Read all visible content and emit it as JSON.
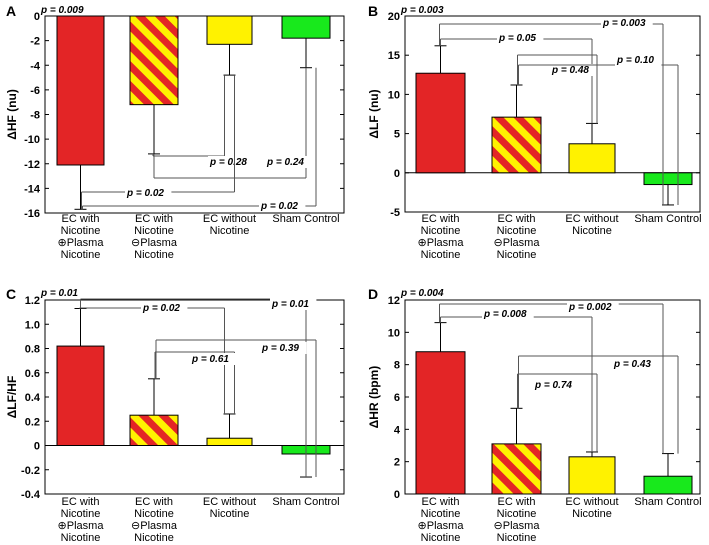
{
  "chart_data": [
    {
      "type": "bar",
      "panel": "A",
      "title": "",
      "ylabel": "ΔHF (nu)",
      "xlabel": "",
      "ylim": [
        -16,
        0
      ],
      "yticks": [
        0,
        -2,
        -4,
        -6,
        -8,
        -10,
        -12,
        -14,
        -16
      ],
      "categories": [
        "EC with Nicotine ⊕Plasma Nicotine",
        "EC with Nicotine ⊖Plasma Nicotine",
        "EC without Nicotine",
        "Sham Control"
      ],
      "category_lines": [
        [
          "EC with",
          "Nicotine",
          "⊕Plasma",
          "Nicotine"
        ],
        [
          "EC with",
          "Nicotine",
          "⊖Plasma",
          "Nicotine"
        ],
        [
          "EC without",
          "Nicotine"
        ],
        [
          "Sham Control"
        ]
      ],
      "values": [
        -12.1,
        -7.2,
        -2.3,
        -1.8
      ],
      "errors": [
        3.6,
        4.0,
        2.5,
        2.4
      ],
      "fills": [
        "solid-red",
        "striped",
        "solid-yellow",
        "solid-green"
      ],
      "overall_p": "p = 0.009",
      "comparisons": [
        {
          "from": 1,
          "to": 2,
          "p": "p = 0.28"
        },
        {
          "from": 1,
          "to": 3,
          "p": "p = 0.24"
        },
        {
          "from": 0,
          "to": 2,
          "p": "p = 0.02"
        },
        {
          "from": 0,
          "to": 3,
          "p": "p = 0.02"
        }
      ]
    },
    {
      "type": "bar",
      "panel": "B",
      "title": "",
      "ylabel": "ΔLF (nu)",
      "xlabel": "",
      "ylim": [
        -5,
        20
      ],
      "yticks": [
        -5,
        0,
        5,
        10,
        15,
        20
      ],
      "categories": [
        "EC with Nicotine ⊕Plasma Nicotine",
        "EC with Nicotine ⊖Plasma Nicotine",
        "EC without Nicotine",
        "Sham Control"
      ],
      "category_lines": [
        [
          "EC with",
          "Nicotine",
          "⊕Plasma",
          "Nicotine"
        ],
        [
          "EC with",
          "Nicotine",
          "⊖Plasma",
          "Nicotine"
        ],
        [
          "EC without",
          "Nicotine"
        ],
        [
          "Sham Control"
        ]
      ],
      "values": [
        12.7,
        7.1,
        3.7,
        -1.5
      ],
      "errors": [
        3.5,
        4.1,
        2.6,
        2.6
      ],
      "fills": [
        "solid-red",
        "striped",
        "solid-yellow",
        "solid-green"
      ],
      "overall_p": "p = 0.003",
      "comparisons": [
        {
          "from": 0,
          "to": 3,
          "p": "p = 0.003"
        },
        {
          "from": 0,
          "to": 2,
          "p": "p = 0.05"
        },
        {
          "from": 1,
          "to": 2,
          "p": "p = 0.48"
        },
        {
          "from": 1,
          "to": 3,
          "p": "p = 0.10"
        }
      ]
    },
    {
      "type": "bar",
      "panel": "C",
      "title": "",
      "ylabel": "ΔLF/HF",
      "xlabel": "",
      "ylim": [
        -0.4,
        1.2
      ],
      "yticks": [
        1.2,
        1.0,
        0.8,
        0.6,
        0.4,
        0.2,
        0,
        -0.2,
        -0.4
      ],
      "ytick_labels": [
        "1.2",
        "1.0",
        "0.8",
        "0.6",
        "0.4",
        "0.2",
        "0",
        "-0.2",
        "-0.4"
      ],
      "categories": [
        "EC with Nicotine ⊕Plasma Nicotine",
        "EC with Nicotine ⊖Plasma Nicotine",
        "EC without Nicotine",
        "Sham Control"
      ],
      "category_lines": [
        [
          "EC with",
          "Nicotine",
          "⊕Plasma",
          "Nicotine"
        ],
        [
          "EC with",
          "Nicotine",
          "⊖Plasma",
          "Nicotine"
        ],
        [
          "EC without",
          "Nicotine"
        ],
        [
          "Sham Control"
        ]
      ],
      "values": [
        0.82,
        0.25,
        0.06,
        -0.07
      ],
      "errors": [
        0.31,
        0.3,
        0.2,
        0.19
      ],
      "fills": [
        "solid-red",
        "striped",
        "solid-yellow",
        "solid-green"
      ],
      "overall_p": "p = 0.01",
      "comparisons": [
        {
          "from": 0,
          "to": 2,
          "p": "p = 0.02"
        },
        {
          "from": 0,
          "to": 3,
          "p": "p = 0.01"
        },
        {
          "from": 1,
          "to": 2,
          "p": "p = 0.61"
        },
        {
          "from": 1,
          "to": 3,
          "p": "p = 0.39"
        }
      ]
    },
    {
      "type": "bar",
      "panel": "D",
      "title": "",
      "ylabel": "ΔHR (bpm)",
      "xlabel": "",
      "ylim": [
        0,
        12
      ],
      "yticks": [
        0,
        2,
        4,
        6,
        8,
        10,
        12
      ],
      "categories": [
        "EC with Nicotine ⊕Plasma Nicotine",
        "EC with Nicotine ⊖Plasma Nicotine",
        "EC without Nicotine",
        "Sham Control"
      ],
      "category_lines": [
        [
          "EC with",
          "Nicotine",
          "⊕Plasma",
          "Nicotine"
        ],
        [
          "EC with",
          "Nicotine",
          "⊖Plasma",
          "Nicotine"
        ],
        [
          "EC without",
          "Nicotine"
        ],
        [
          "Sham Control"
        ]
      ],
      "values": [
        8.8,
        3.1,
        2.3,
        1.1
      ],
      "errors": [
        1.8,
        2.2,
        0.3,
        1.4
      ],
      "fills": [
        "solid-red",
        "striped",
        "solid-yellow",
        "solid-green"
      ],
      "overall_p": "p = 0.004",
      "comparisons": [
        {
          "from": 0,
          "to": 3,
          "p": "p = 0.002"
        },
        {
          "from": 0,
          "to": 2,
          "p": "p = 0.008"
        },
        {
          "from": 1,
          "to": 2,
          "p": "p = 0.74"
        },
        {
          "from": 1,
          "to": 3,
          "p": "p = 0.43"
        }
      ]
    }
  ],
  "colors": {
    "red": "#e32526",
    "yellow": "#fff200",
    "green": "#18e91c",
    "stroke": "#000000",
    "bracket": "#555555"
  }
}
